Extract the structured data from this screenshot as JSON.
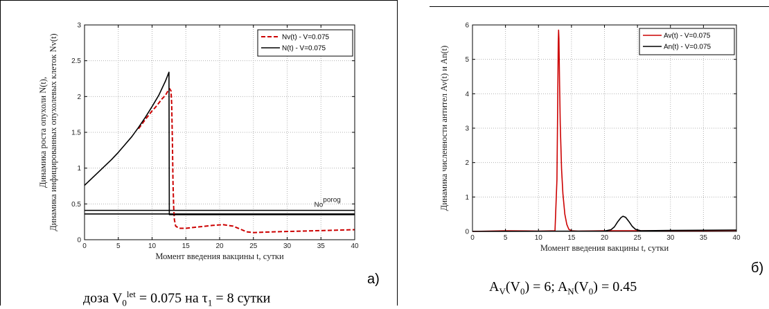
{
  "colors": {
    "red": "#cc0000",
    "black": "#000000",
    "grid": "#b0b0b0"
  },
  "panels": [
    {
      "letter": "а)",
      "caption": {
        "prefix": "доза V",
        "sub0": "0",
        "sup": "let",
        "mid": " = 0.075 на τ",
        "sub1": "1",
        "suffix": " = 8 сутки"
      }
    },
    {
      "letter": "б)",
      "caption": {
        "a": "A",
        "a_sub": "V",
        "b": "(V",
        "b_sub": "0",
        "c": ") = 6; A",
        "c_sub": "N",
        "d": "(V",
        "d_sub": "0",
        "e": ") = 0.45"
      }
    }
  ],
  "chart_data": [
    {
      "type": "line",
      "xlabel": "Момент введения вакцины t, сутки",
      "ylabel_lines": [
        "Динамика роста опухоли N(t),",
        "Динамика инфицированных опухолевых клеток Nv(t)"
      ],
      "xlim": [
        0,
        40
      ],
      "ylim": [
        0,
        3
      ],
      "xticks": [
        0,
        5,
        10,
        15,
        20,
        25,
        30,
        35,
        40
      ],
      "yticks": [
        0,
        0.5,
        1,
        1.5,
        2,
        2.5,
        3
      ],
      "grid": true,
      "legend_position": "top-right",
      "annotation": {
        "text": "No",
        "sup": "porog",
        "x": 34,
        "y": 0.42
      },
      "threshold_lines": [
        0.41,
        0.36
      ],
      "series": [
        {
          "name": "Nv(t) - V=0.075",
          "color": "#cc0000",
          "dash": true,
          "x": [
            8,
            9,
            10,
            10.5,
            11,
            11.5,
            12,
            12.3,
            12.6,
            12.8,
            12.9,
            13.0,
            13.1,
            13.2,
            13.3,
            13.5,
            14,
            15,
            17,
            19,
            20.5,
            22,
            23,
            24,
            25,
            28,
            32,
            36,
            40
          ],
          "y": [
            1.55,
            1.68,
            1.8,
            1.85,
            1.91,
            1.97,
            2.02,
            2.07,
            2.11,
            2.08,
            1.9,
            1.4,
            0.8,
            0.45,
            0.28,
            0.19,
            0.16,
            0.16,
            0.18,
            0.2,
            0.21,
            0.19,
            0.15,
            0.11,
            0.1,
            0.11,
            0.12,
            0.13,
            0.14
          ]
        },
        {
          "name": "N(t) - V=0.075",
          "color": "#000000",
          "dash": false,
          "x": [
            0,
            1,
            2,
            3,
            4,
            5,
            6,
            7,
            8,
            9,
            10,
            11,
            12,
            12.5,
            12.55,
            40
          ],
          "y": [
            0.76,
            0.85,
            0.94,
            1.03,
            1.12,
            1.22,
            1.33,
            1.44,
            1.57,
            1.71,
            1.86,
            2.02,
            2.22,
            2.34,
            0.35,
            0.35
          ]
        }
      ]
    },
    {
      "type": "line",
      "xlabel": "Момент введения вакцины t, сутки",
      "ylabel_lines": [
        "Динамика численности антител Av(t) и An(t)"
      ],
      "xlim": [
        0,
        40
      ],
      "ylim": [
        0,
        6
      ],
      "xticks": [
        0,
        5,
        10,
        15,
        20,
        25,
        30,
        35,
        40
      ],
      "yticks": [
        0,
        1,
        2,
        3,
        4,
        5,
        6
      ],
      "grid": true,
      "legend_position": "top-right",
      "series": [
        {
          "name": "Av(t) - V=0.075",
          "color": "#cc0000",
          "dash": false,
          "x": [
            0,
            5,
            10,
            12.5,
            12.8,
            12.9,
            13.0,
            13.05,
            13.1,
            13.2,
            13.3,
            13.5,
            13.7,
            14,
            14.3,
            14.6,
            15,
            16,
            20,
            30,
            40
          ],
          "y": [
            0,
            0.02,
            0.01,
            0.02,
            1.5,
            3.5,
            5.5,
            5.85,
            5.6,
            4.3,
            3.1,
            1.8,
            1.1,
            0.5,
            0.2,
            0.06,
            0.02,
            0.01,
            0.02,
            0.02,
            0.03
          ]
        },
        {
          "name": "An(t) - V=0.075",
          "color": "#000000",
          "dash": false,
          "x": [
            0,
            20,
            21,
            21.5,
            22,
            22.5,
            22.8,
            23.2,
            23.7,
            24.2,
            24.7,
            25.5,
            30,
            40
          ],
          "y": [
            0,
            0.01,
            0.05,
            0.13,
            0.28,
            0.4,
            0.44,
            0.41,
            0.29,
            0.15,
            0.06,
            0.02,
            0.03,
            0.04
          ]
        }
      ]
    }
  ]
}
